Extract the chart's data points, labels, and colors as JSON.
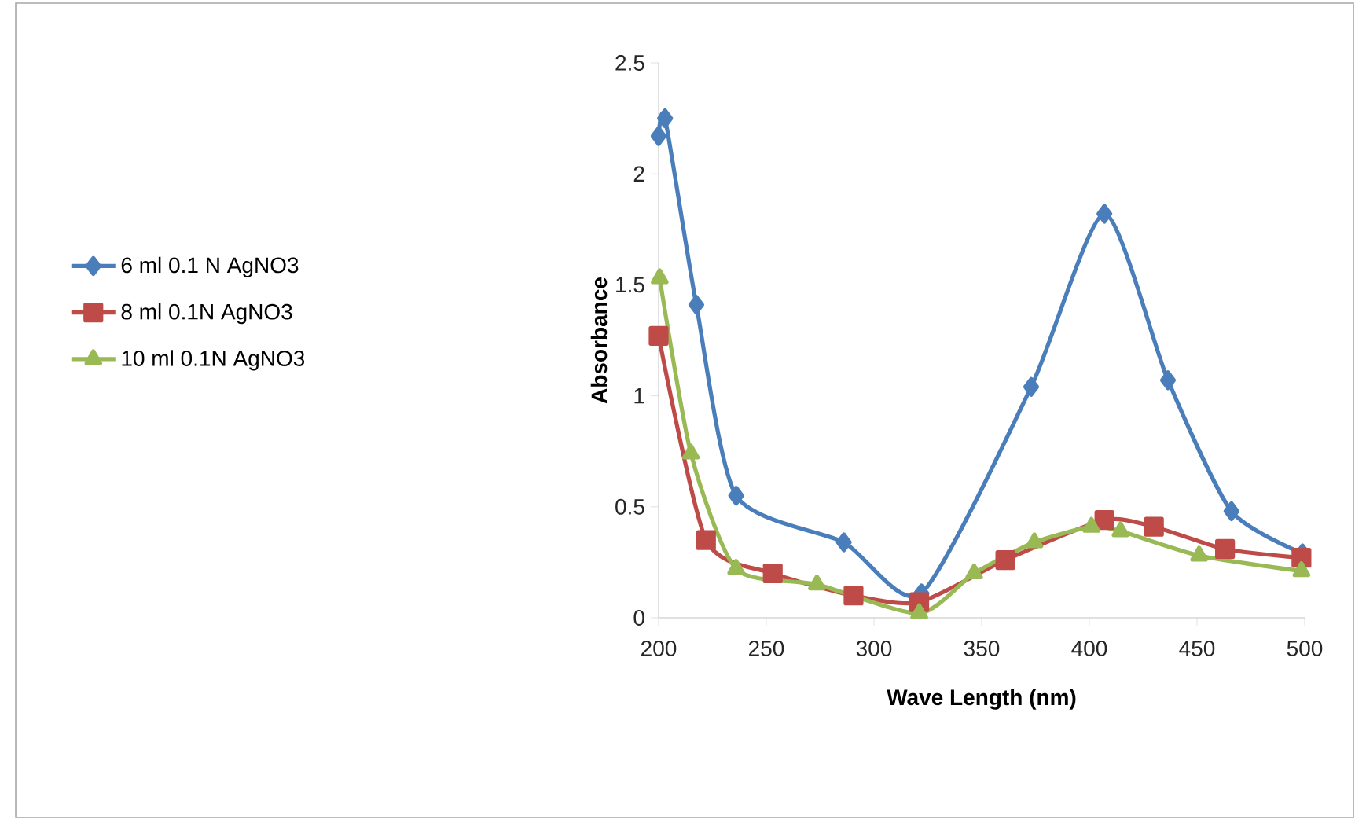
{
  "chart_data": {
    "type": "line",
    "xlabel": "Wave Length (nm)",
    "ylabel": "Absorbance",
    "xlim": [
      200,
      500
    ],
    "ylim": [
      0,
      2.5
    ],
    "xticks": [
      200,
      250,
      300,
      350,
      400,
      450,
      500
    ],
    "yticks": [
      0,
      0.5,
      1,
      1.5,
      2,
      2.5
    ],
    "grid": false,
    "legend": "left",
    "line_style": "solid",
    "series": [
      {
        "name": "6 ml 0.1 N AgNO3",
        "color": "#4a7ebb",
        "marker": "diamond",
        "x": [
          200,
          203,
          217.5,
          236,
          286,
          322,
          373,
          407,
          436.5,
          466,
          499
        ],
        "values": [
          2.17,
          2.25,
          1.41,
          0.55,
          0.34,
          0.11,
          1.04,
          1.82,
          1.07,
          0.48,
          0.29
        ]
      },
      {
        "name": "8 ml 0.1N AgNO3",
        "color": "#be4b48",
        "marker": "square",
        "x": [
          200,
          222,
          253,
          290.5,
          321,
          361,
          407,
          430,
          463,
          498.5
        ],
        "values": [
          1.27,
          0.35,
          0.2,
          0.1,
          0.07,
          0.26,
          0.44,
          0.41,
          0.31,
          0.27
        ]
      },
      {
        "name": "10 ml 0.1N AgNO3",
        "color": "#98b954",
        "marker": "triangle",
        "x": [
          200.5,
          215,
          236,
          273.5,
          321,
          346.5,
          374.5,
          401,
          414.5,
          451,
          498.5
        ],
        "values": [
          1.53,
          0.74,
          0.22,
          0.15,
          0.02,
          0.2,
          0.34,
          0.41,
          0.39,
          0.28,
          0.21
        ]
      }
    ]
  }
}
